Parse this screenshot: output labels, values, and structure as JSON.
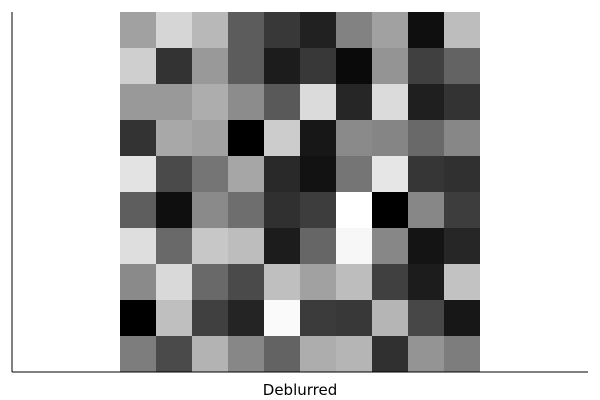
{
  "chart_data": {
    "type": "heatmap",
    "title": "",
    "xlabel": "Deblurred",
    "ylabel": "",
    "colormap": "grayscale",
    "grid": false,
    "legend": "none",
    "rows": 10,
    "cols": 10,
    "values": [
      [
        0.63,
        0.84,
        0.72,
        0.36,
        0.22,
        0.13,
        0.51,
        0.63,
        0.06,
        0.74
      ],
      [
        0.81,
        0.2,
        0.6,
        0.36,
        0.11,
        0.22,
        0.04,
        0.58,
        0.25,
        0.39
      ],
      [
        0.6,
        0.6,
        0.68,
        0.55,
        0.35,
        0.86,
        0.15,
        0.86,
        0.12,
        0.2
      ],
      [
        0.2,
        0.66,
        0.63,
        0.0,
        0.8,
        0.09,
        0.54,
        0.52,
        0.41,
        0.53
      ],
      [
        0.89,
        0.29,
        0.46,
        0.65,
        0.16,
        0.07,
        0.46,
        0.9,
        0.21,
        0.19
      ],
      [
        0.37,
        0.06,
        0.54,
        0.43,
        0.19,
        0.24,
        1.0,
        0.0,
        0.53,
        0.24
      ],
      [
        0.87,
        0.41,
        0.78,
        0.74,
        0.11,
        0.4,
        0.97,
        0.53,
        0.08,
        0.15
      ],
      [
        0.54,
        0.85,
        0.41,
        0.29,
        0.75,
        0.63,
        0.74,
        0.25,
        0.11,
        0.76
      ],
      [
        0.0,
        0.75,
        0.25,
        0.14,
        0.98,
        0.23,
        0.22,
        0.71,
        0.28,
        0.09
      ],
      [
        0.49,
        0.29,
        0.7,
        0.53,
        0.39,
        0.68,
        0.71,
        0.19,
        0.58,
        0.49
      ]
    ]
  }
}
